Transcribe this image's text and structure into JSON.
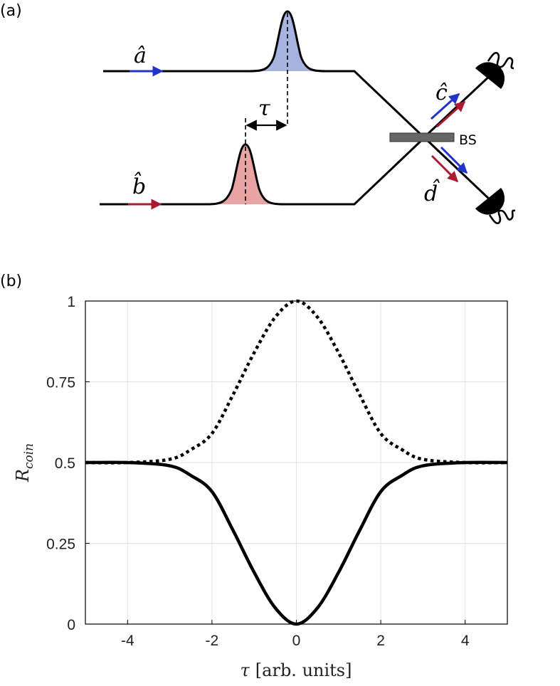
{
  "panel_a": {
    "label": "(a)",
    "mode_a": "â",
    "mode_b": "b̂",
    "mode_c": "ĉ",
    "mode_d": "d̂",
    "delay": "τ",
    "beamsplitter": "BS",
    "colors": {
      "blue": "#2233cc",
      "red": "#aa1a33",
      "pulse_a_fill": "#a9b3e0",
      "pulse_b_fill": "#e8a3a3"
    }
  },
  "panel_b": {
    "label": "(b)",
    "xlabel_symbol": "τ",
    "xlabel_units": "[arb. units]",
    "ylabel_main": "R",
    "ylabel_sub": "coin"
  },
  "chart_data": {
    "type": "line",
    "xlim": [
      -5,
      5
    ],
    "ylim": [
      0,
      1
    ],
    "xticks": [
      "-4",
      "-2",
      "0",
      "2",
      "4"
    ],
    "yticks": [
      "0",
      "0.25",
      "0.5",
      "0.75",
      "1"
    ],
    "grid": true,
    "series": [
      {
        "style": "solid",
        "x": [
          -5,
          -4,
          -3,
          -2.5,
          -2,
          -1.5,
          -1,
          -0.5,
          0,
          0.5,
          1,
          1.5,
          2,
          2.5,
          3,
          4,
          5
        ],
        "y": [
          0.5,
          0.5,
          0.49,
          0.46,
          0.41,
          0.29,
          0.16,
          0.05,
          0.0,
          0.05,
          0.16,
          0.29,
          0.41,
          0.46,
          0.49,
          0.5,
          0.5
        ]
      },
      {
        "style": "dotted",
        "x": [
          -5,
          -4,
          -3,
          -2.5,
          -2,
          -1.5,
          -1,
          -0.5,
          0,
          0.5,
          1,
          1.5,
          2,
          2.5,
          3,
          4,
          5
        ],
        "y": [
          0.5,
          0.5,
          0.51,
          0.54,
          0.59,
          0.71,
          0.84,
          0.95,
          1.0,
          0.95,
          0.84,
          0.71,
          0.59,
          0.54,
          0.51,
          0.5,
          0.5
        ]
      }
    ]
  }
}
